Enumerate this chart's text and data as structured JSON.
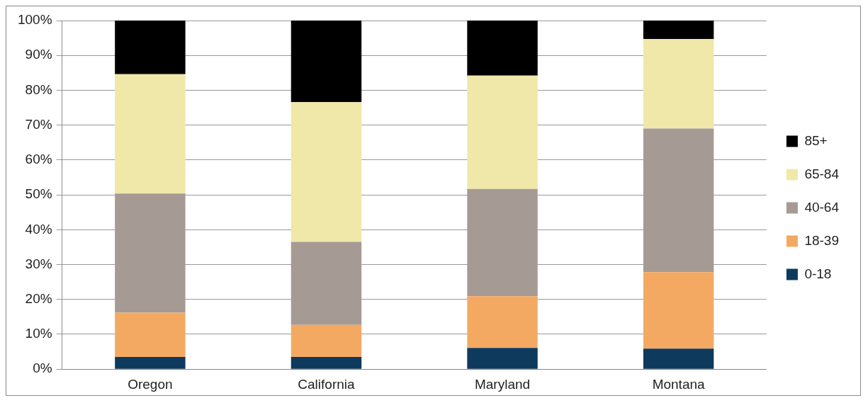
{
  "chart_data": {
    "type": "bar",
    "stacked": true,
    "categories": [
      "Oregon",
      "California",
      "Maryland",
      "Montana"
    ],
    "series": [
      {
        "name": "0-18",
        "color": "#0e3a5e",
        "values": [
          3.5,
          3.5,
          6.1,
          5.9
        ]
      },
      {
        "name": "18-39",
        "color": "#f4a962",
        "values": [
          12.7,
          9.2,
          14.8,
          21.9
        ]
      },
      {
        "name": "40-64",
        "color": "#a69a94",
        "values": [
          34.2,
          23.8,
          30.8,
          41.2
        ]
      },
      {
        "name": "65-84",
        "color": "#f0e8a8",
        "values": [
          34.2,
          40.1,
          32.5,
          25.7
        ]
      },
      {
        "name": "85+",
        "color": "#000000",
        "values": [
          15.4,
          23.4,
          15.8,
          5.3
        ]
      }
    ],
    "ylim": [
      0,
      100
    ],
    "yticks": [
      {
        "value": 0,
        "label": "0%"
      },
      {
        "value": 10,
        "label": "10%"
      },
      {
        "value": 20,
        "label": "20%"
      },
      {
        "value": 30,
        "label": "30%"
      },
      {
        "value": 40,
        "label": "40%"
      },
      {
        "value": 50,
        "label": "50%"
      },
      {
        "value": 60,
        "label": "60%"
      },
      {
        "value": 70,
        "label": "70%"
      },
      {
        "value": 80,
        "label": "80%"
      },
      {
        "value": 90,
        "label": "90%"
      },
      {
        "value": 100,
        "label": "100%"
      }
    ],
    "grid": "y",
    "legend": "right"
  }
}
